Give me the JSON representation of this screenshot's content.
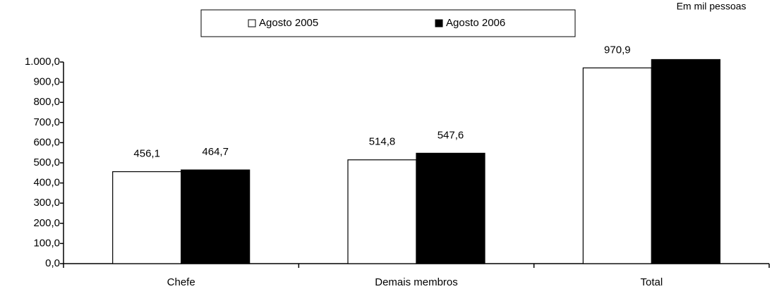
{
  "chart_data": {
    "type": "bar",
    "note": "Em mil pessoas",
    "categories": [
      "Chefe",
      "Demais membros",
      "Total"
    ],
    "series": [
      {
        "name": "Agosto 2005",
        "color": "#ffffff",
        "values": [
          456.1,
          514.8,
          970.9
        ],
        "value_labels": [
          "456,1",
          "514,8",
          "970,9"
        ]
      },
      {
        "name": "Agosto 2006",
        "color": "#000000",
        "values": [
          464.7,
          547.6,
          1012.3
        ],
        "value_labels": [
          "464,7",
          "547,6",
          null
        ]
      }
    ],
    "ylim": [
      0,
      1000
    ],
    "yticks": [
      {
        "value": 0,
        "label": "0,0"
      },
      {
        "value": 100,
        "label": "100,0"
      },
      {
        "value": 200,
        "label": "200,0"
      },
      {
        "value": 300,
        "label": "300,0"
      },
      {
        "value": 400,
        "label": "400,0"
      },
      {
        "value": 500,
        "label": "500,0"
      },
      {
        "value": 600,
        "label": "600,0"
      },
      {
        "value": 700,
        "label": "700,0"
      },
      {
        "value": 800,
        "label": "800,0"
      },
      {
        "value": 900,
        "label": "900,0"
      },
      {
        "value": 1000,
        "label": "1.000,0"
      }
    ],
    "legend": "top"
  }
}
